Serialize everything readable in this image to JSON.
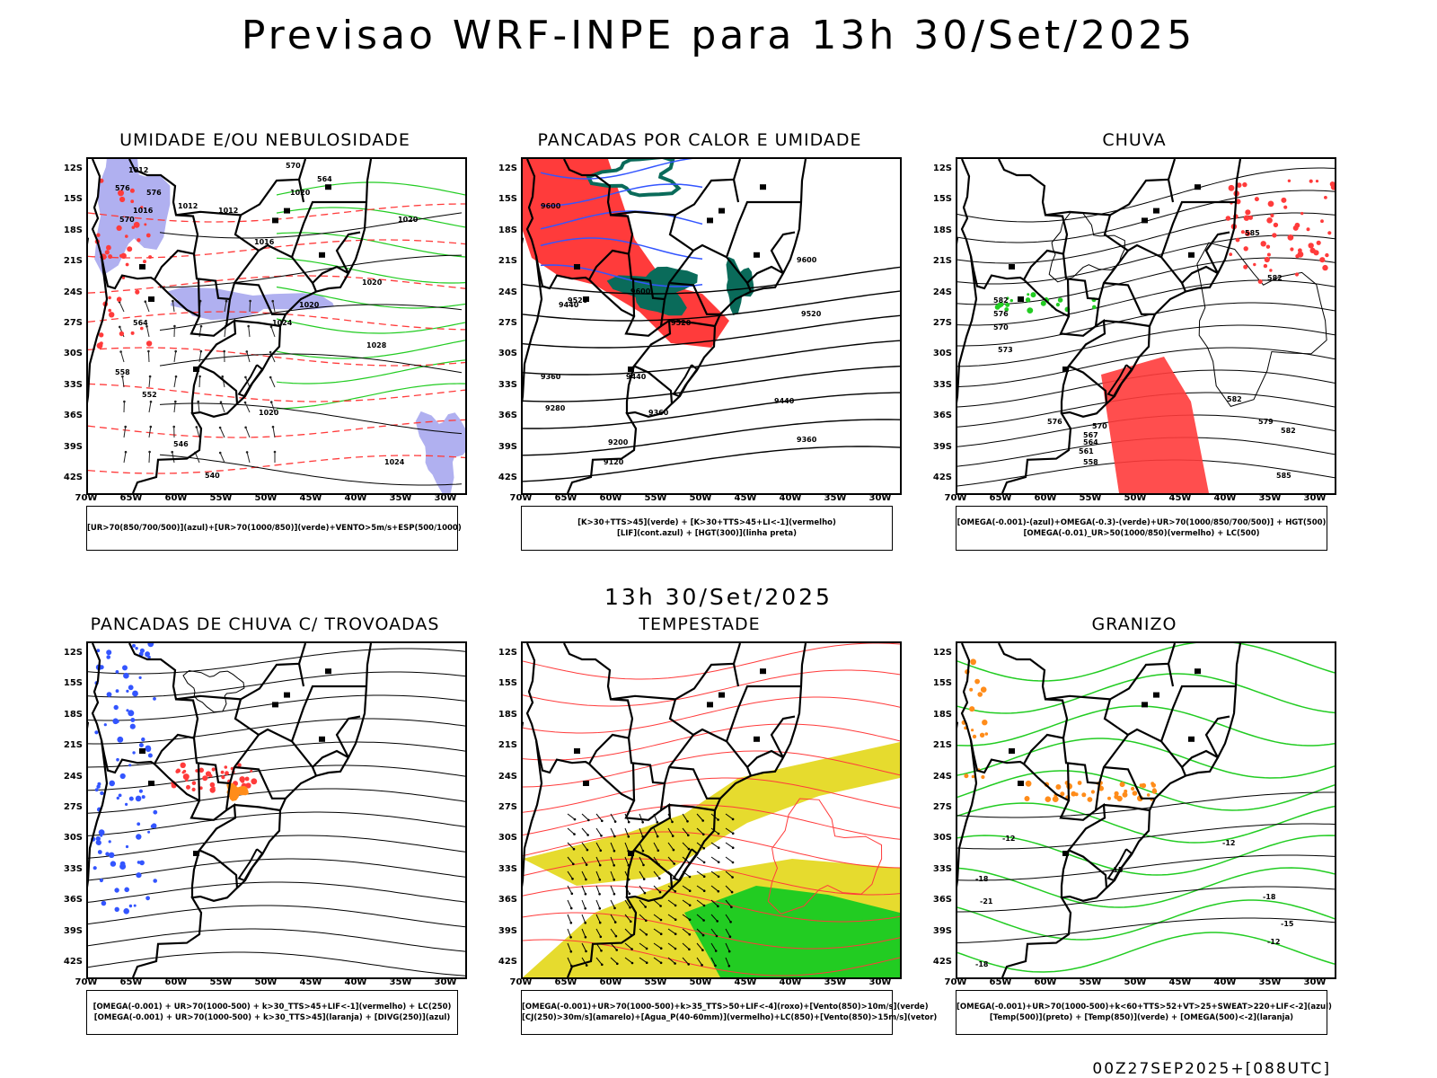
{
  "header": {
    "title": "Previsao WRF-INPE  para 13h 30/Set/2025"
  },
  "middle": {
    "title": "13h 30/Set/2025"
  },
  "footer": {
    "run_info": "00Z27SEP2025+[088UTC]"
  },
  "axes": {
    "latitudes": [
      "12S",
      "15S",
      "18S",
      "21S",
      "24S",
      "27S",
      "30S",
      "33S",
      "36S",
      "39S",
      "42S"
    ],
    "longitudes": [
      "70W",
      "65W",
      "60W",
      "55W",
      "50W",
      "45W",
      "40W",
      "35W",
      "30W"
    ]
  },
  "colors": {
    "red": "#ff3b3b",
    "green": "#22cc22",
    "blue": "#3355ff",
    "lavender": "#b0b0f0",
    "yellow": "#e6db2e",
    "darkgreen": "#0a6b5a",
    "orange": "#ff8c1a"
  },
  "panels": [
    {
      "title": "UMIDADE E/OU NEBULOSIDADE",
      "legend": [
        "[UR>70(850/700/500)](azul)+[UR>70(1000/850)](verde)+VENTO>5m/s+ESP(500/1000)"
      ],
      "contour_labels": [
        "1012",
        "1016",
        "1012",
        "1012",
        "1016",
        "1020",
        "1020",
        "1024",
        "1028",
        "1020",
        "1020",
        "1024",
        "1020",
        "576",
        "570",
        "564",
        "558",
        "552",
        "546",
        "540",
        "576",
        "570",
        "564"
      ]
    },
    {
      "title": "PANCADAS POR CALOR E UMIDADE",
      "legend": [
        "[K>30+TTS>45](verde)  +  [K>30+TTS>45+LI<-1](vermelho)",
        "[LIF](cont.azul)  +  [HGT(300)](linha preta)"
      ],
      "contour_labels": [
        "9600",
        "9600",
        "9520",
        "9440",
        "9520",
        "9600",
        "9520",
        "9440",
        "9360",
        "9280",
        "9200",
        "9120",
        "9360",
        "9440",
        "9360"
      ]
    },
    {
      "title": "CHUVA",
      "legend": [
        "[OMEGA(-0.001)-(azul)+OMEGA(-0.3)-(verde)+UR>70(1000/850/700/500)]  +  HGT(500)",
        "[OMEGA(-0.01)_UR>50(1000/850)(vermelho)  +  LC(500)"
      ],
      "contour_labels": [
        "585",
        "582",
        "582",
        "576",
        "570",
        "573",
        "582",
        "579",
        "576",
        "570",
        "567",
        "564",
        "561",
        "558",
        "585",
        "582"
      ]
    },
    {
      "title": "PANCADAS DE CHUVA C/ TROVOADAS",
      "legend": [
        "[OMEGA(-0.001)  +  UR>70(1000-500)  +  k>30_TTS>45+LIF<-1](vermelho)  +  LC(250)",
        "[OMEGA(-0.001)  +  UR>70(1000-500)  +  k>30_TTS>45](laranja)  +  [DIVG(250)](azul)"
      ],
      "contour_labels": []
    },
    {
      "title": "TEMPESTADE",
      "legend": [
        "[OMEGA(-0.001)+UR>70(1000-500)+k>35_TTS>50+LIF<-4](roxo)+[Vento(850)>10m/s](verde)",
        "[CJ(250)>30m/s](amarelo)+[Agua_P(40-60mm)](vermelho)+LC(850)+[Vento(850)>15m/s](vetor)"
      ],
      "contour_labels": []
    },
    {
      "title": "GRANIZO",
      "legend": [
        "[OMEGA(-0.001)+UR>70(1000-500)+k<60+TTS>52+VT>25+SWEAT>220+LIF<-2](azul)",
        "[Temp(500)](preto)  +  [Temp(850)](verde)  +  [OMEGA(500)<-2](laranja)"
      ],
      "contour_labels": [
        "-12",
        "-12",
        "-15",
        "-18",
        "-21",
        "-18",
        "-15",
        "-12",
        "-18"
      ]
    }
  ]
}
